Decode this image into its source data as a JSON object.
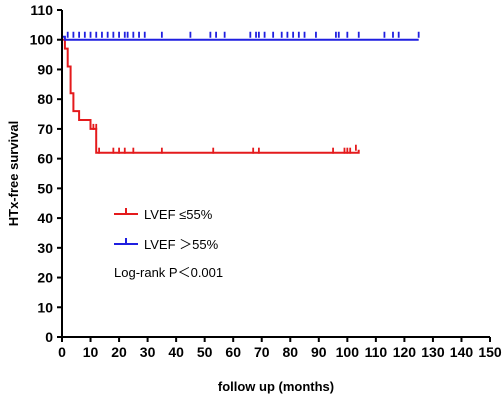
{
  "chart_data": {
    "type": "line",
    "subtype": "kaplan-meier",
    "title": "",
    "xlabel": "follow up (months)",
    "ylabel": "HTx-free survival",
    "xlim": [
      0,
      150
    ],
    "ylim": [
      0,
      110
    ],
    "xticks": [
      0,
      10,
      20,
      30,
      40,
      50,
      60,
      70,
      80,
      90,
      100,
      110,
      120,
      130,
      140,
      150
    ],
    "yticks": [
      0,
      10,
      20,
      30,
      40,
      50,
      60,
      70,
      80,
      90,
      100,
      110
    ],
    "grid": false,
    "legend_position": "center-left",
    "series": [
      {
        "name": "LVEF ≤55%",
        "color": "#e41a1c",
        "steps": [
          [
            0,
            100
          ],
          [
            1,
            100
          ],
          [
            1,
            97
          ],
          [
            2,
            97
          ],
          [
            2,
            91
          ],
          [
            3,
            91
          ],
          [
            3,
            82
          ],
          [
            4,
            82
          ],
          [
            4,
            76
          ],
          [
            6,
            76
          ],
          [
            6,
            73
          ],
          [
            10,
            73
          ],
          [
            10,
            70
          ],
          [
            12,
            70
          ],
          [
            12,
            62
          ],
          [
            104,
            62
          ],
          [
            104,
            63
          ]
        ],
        "censored": [
          [
            11,
            70
          ],
          [
            12,
            70
          ],
          [
            13,
            62
          ],
          [
            18,
            62
          ],
          [
            20,
            62
          ],
          [
            22,
            62
          ],
          [
            25,
            62
          ],
          [
            35,
            62
          ],
          [
            53,
            62
          ],
          [
            67,
            62
          ],
          [
            69,
            62
          ],
          [
            95,
            62
          ],
          [
            99,
            62
          ],
          [
            100,
            62
          ],
          [
            101,
            62
          ],
          [
            103,
            63
          ]
        ]
      },
      {
        "name": "LVEF ＞55%",
        "color": "#1f1fe0",
        "steps": [
          [
            0,
            101
          ],
          [
            1,
            101
          ],
          [
            1,
            100
          ],
          [
            125,
            100
          ]
        ],
        "censored": [
          [
            2,
            101
          ],
          [
            4,
            101
          ],
          [
            6,
            101
          ],
          [
            8,
            101
          ],
          [
            10,
            101
          ],
          [
            12,
            101
          ],
          [
            14,
            101
          ],
          [
            16,
            101
          ],
          [
            18,
            101
          ],
          [
            20,
            101
          ],
          [
            22,
            101
          ],
          [
            23,
            101
          ],
          [
            25,
            101
          ],
          [
            27,
            101
          ],
          [
            29,
            101
          ],
          [
            35,
            101
          ],
          [
            45,
            101
          ],
          [
            52,
            101
          ],
          [
            54,
            101
          ],
          [
            57,
            101
          ],
          [
            66,
            101
          ],
          [
            68,
            101
          ],
          [
            69,
            101
          ],
          [
            71,
            101
          ],
          [
            74,
            101
          ],
          [
            77,
            101
          ],
          [
            79,
            101
          ],
          [
            81,
            101
          ],
          [
            83,
            101
          ],
          [
            85,
            101
          ],
          [
            89,
            101
          ],
          [
            96,
            101
          ],
          [
            97,
            101
          ],
          [
            100,
            101
          ],
          [
            104,
            101
          ],
          [
            113,
            101
          ],
          [
            116,
            101
          ],
          [
            118,
            101
          ],
          [
            125,
            101
          ]
        ]
      }
    ],
    "legend": [
      {
        "label": "LVEF ≤55%",
        "color": "#e41a1c"
      },
      {
        "label": "LVEF ＞55%",
        "color": "#1f1fe0"
      }
    ],
    "annotation": "Log-rank P＜0.001"
  }
}
